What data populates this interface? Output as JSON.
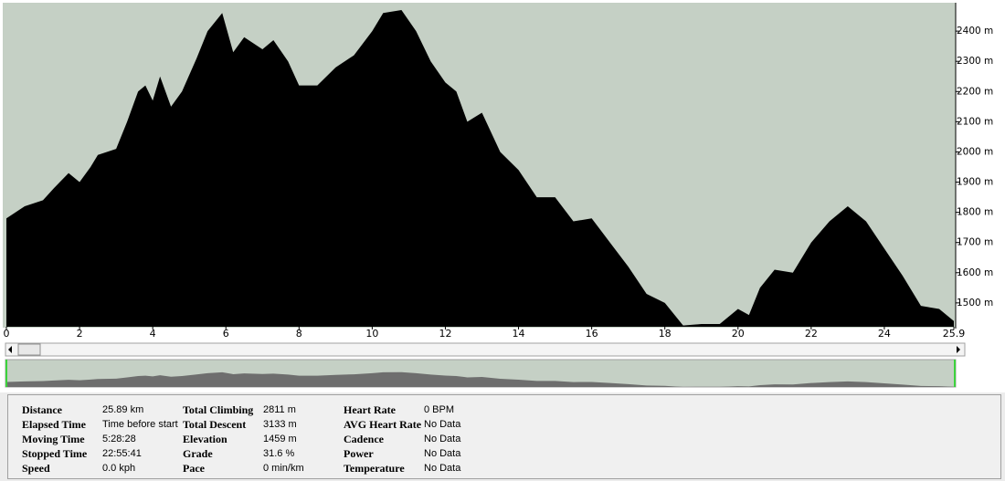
{
  "chart_data": {
    "type": "area",
    "color": "#000000",
    "background": "#c5d0c5",
    "x": [
      0,
      0.5,
      1,
      1.3,
      1.7,
      2,
      2.3,
      2.5,
      3,
      3.3,
      3.6,
      3.8,
      4,
      4.2,
      4.5,
      4.8,
      5.2,
      5.5,
      5.9,
      6.2,
      6.5,
      7,
      7.3,
      7.7,
      8,
      8.5,
      9,
      9.5,
      10,
      10.3,
      10.8,
      11.2,
      11.6,
      12,
      12.3,
      12.6,
      13,
      13.5,
      14,
      14.5,
      15,
      15.5,
      16,
      16.5,
      17,
      17.5,
      18,
      18.5,
      19,
      19.5,
      20,
      20.3,
      20.6,
      21,
      21.5,
      22,
      22.5,
      23,
      23.5,
      24,
      24.5,
      25,
      25.5,
      25.9
    ],
    "values": [
      1780,
      1820,
      1840,
      1880,
      1930,
      1900,
      1950,
      1990,
      2010,
      2100,
      2200,
      2220,
      2170,
      2250,
      2150,
      2200,
      2310,
      2400,
      2460,
      2330,
      2380,
      2340,
      2370,
      2300,
      2220,
      2220,
      2280,
      2320,
      2400,
      2460,
      2470,
      2400,
      2300,
      2230,
      2200,
      2100,
      2130,
      2000,
      1940,
      1850,
      1850,
      1770,
      1780,
      1700,
      1620,
      1530,
      1500,
      1425,
      1430,
      1430,
      1480,
      1460,
      1550,
      1610,
      1600,
      1700,
      1770,
      1820,
      1770,
      1680,
      1590,
      1490,
      1480,
      1440
    ],
    "xlim": [
      0,
      25.9
    ],
    "ylim": [
      1421,
      2488
    ],
    "xticks": [
      0,
      2,
      4,
      6,
      8,
      10,
      12,
      14,
      16,
      18,
      20,
      22,
      24,
      25.9
    ],
    "yticks": [
      {
        "value": 1500,
        "label": "1500 m"
      },
      {
        "value": 1600,
        "label": "1600 m"
      },
      {
        "value": 1700,
        "label": "1700 m"
      },
      {
        "value": 1800,
        "label": "1800 m"
      },
      {
        "value": 1900,
        "label": "1900 m"
      },
      {
        "value": 2000,
        "label": "2000 m"
      },
      {
        "value": 2100,
        "label": "2100 m"
      },
      {
        "value": 2200,
        "label": "2200 m"
      },
      {
        "value": 2300,
        "label": "2300 m"
      },
      {
        "value": 2400,
        "label": "2400 m"
      }
    ]
  },
  "stats": {
    "columns": [
      [
        {
          "label": "Distance",
          "value": "25.89 km"
        },
        {
          "label": "Elapsed Time",
          "value": "Time before start"
        },
        {
          "label": "Moving Time",
          "value": "5:28:28"
        },
        {
          "label": "Stopped Time",
          "value": "22:55:41"
        },
        {
          "label": "Speed",
          "value": "0.0 kph"
        }
      ],
      [
        {
          "label": "Total Climbing",
          "value": "2811 m"
        },
        {
          "label": "Total Descent",
          "value": "3133 m"
        },
        {
          "label": "Elevation",
          "value": "1459 m"
        },
        {
          "label": "Grade",
          "value": "31.6 %"
        },
        {
          "label": "Pace",
          "value": "0 min/km"
        }
      ],
      [
        {
          "label": "Heart Rate",
          "value": "0 BPM"
        },
        {
          "label": "AVG Heart Rate",
          "value": "No Data"
        },
        {
          "label": "Cadence",
          "value": "No Data"
        },
        {
          "label": "Power",
          "value": "No Data"
        },
        {
          "label": "Temperature",
          "value": "No Data"
        }
      ]
    ]
  }
}
